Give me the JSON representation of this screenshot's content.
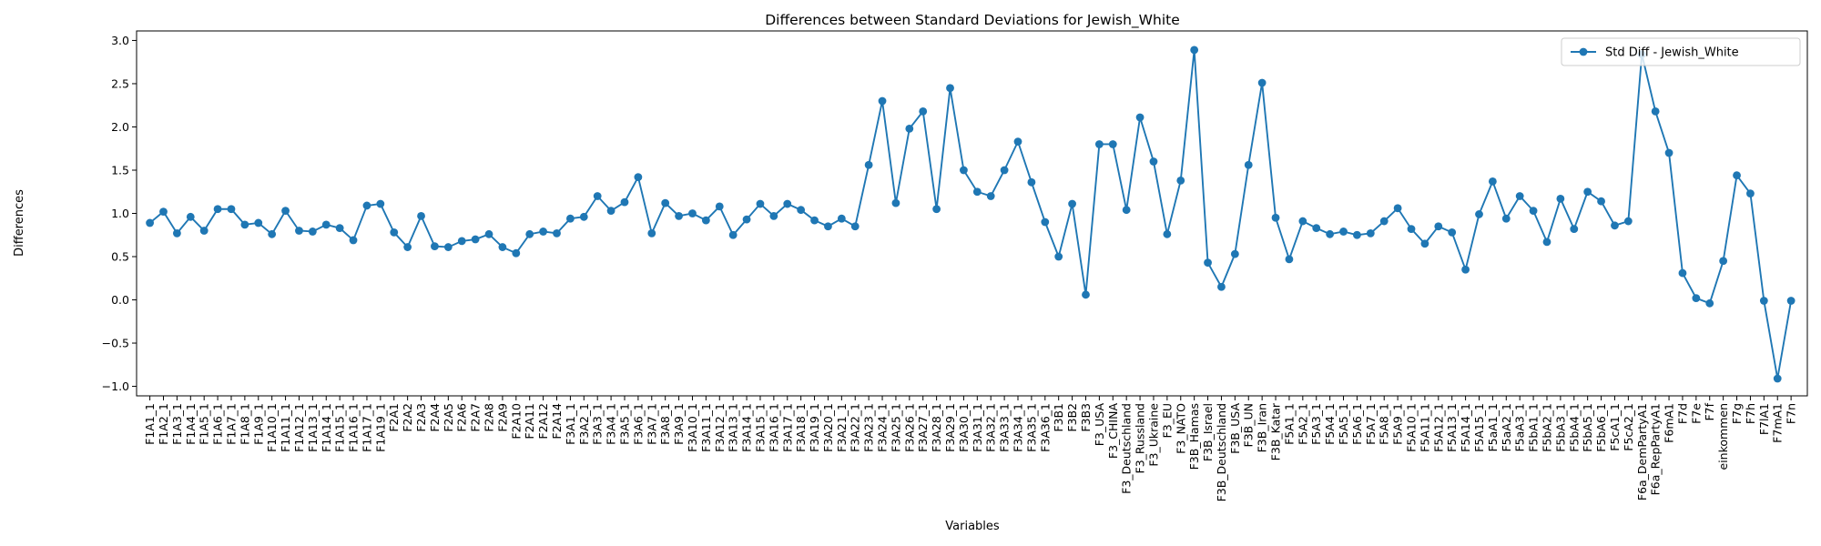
{
  "chart_data": {
    "type": "line",
    "title": "Differences between Standard Deviations for Jewish_White",
    "x_label": "Variables",
    "y_label": "Differences",
    "categories": [
      "F1A1_1",
      "F1A2_1",
      "F1A3_1",
      "F1A4_1",
      "F1A5_1",
      "F1A6_1",
      "F1A7_1",
      "F1A8_1",
      "F1A9_1",
      "F1A10_1",
      "F1A11_1",
      "F1A12_1",
      "F1A13_1",
      "F1A14_1",
      "F1A15_1",
      "F1A16_1",
      "F1A17_1",
      "F1A19_1",
      "F2A1",
      "F2A2",
      "F2A3",
      "F2A4",
      "F2A5",
      "F2A6",
      "F2A7",
      "F2A8",
      "F2A9",
      "F2A10",
      "F2A11",
      "F2A12",
      "F2A14",
      "F3A1_1",
      "F3A2_1",
      "F3A3_1",
      "F3A4_1",
      "F3A5_1",
      "F3A6_1",
      "F3A7_1",
      "F3A8_1",
      "F3A9_1",
      "F3A10_1",
      "F3A11_1",
      "F3A12_1",
      "F3A13_1",
      "F3A14_1",
      "F3A15_1",
      "F3A16_1",
      "F3A17_1",
      "F3A18_1",
      "F3A19_1",
      "F3A20_1",
      "F3A21_1",
      "F3A22_1",
      "F3A23_1",
      "F3A24_1",
      "F3A25_1",
      "F3A26_1",
      "F3A27_1",
      "F3A28_1",
      "F3A29_1",
      "F3A30_1",
      "F3A31_1",
      "F3A32_1",
      "F3A33_1",
      "F3A34_1",
      "F3A35_1",
      "F3A36_1",
      "F3B1",
      "F3B2",
      "F3B3",
      "F3_USA",
      "F3_CHINA",
      "F3_Deutschland",
      "F3_Russland",
      "F3_Ukraine",
      "F3_EU",
      "F3_NATO",
      "F3B_Hamas",
      "F3B_Israel",
      "F3B_Deutschland",
      "F3B_USA",
      "F3B_UN",
      "F3B_Iran",
      "F3B_Katar",
      "F5A1_1",
      "F5A2_1",
      "F5A3_1",
      "F5A4_1",
      "F5A5_1",
      "F5A6_1",
      "F5A7_1",
      "F5A8_1",
      "F5A9_1",
      "F5A10_1",
      "F5A11_1",
      "F5A12_1",
      "F5A13_1",
      "F5A14_1",
      "F5A15_1",
      "F5aA1_1",
      "F5aA2_1",
      "F5aA3_1",
      "F5bA1_1",
      "F5bA2_1",
      "F5bA3_1",
      "F5bA4_1",
      "F5bA5_1",
      "F5bA6_1",
      "F5cA1_1",
      "F5cA2_1",
      "F6a_DemPartyA1",
      "F6a_RepPartyA1",
      "F6mA1",
      "F7d",
      "F7e",
      "F7f",
      "einkommen",
      "F7g",
      "F7h",
      "F7lA1",
      "F7mA1",
      "F7n"
    ],
    "series": [
      {
        "name": "Std Diff - Jewish_White",
        "color": "#1f77b4",
        "values": [
          0.89,
          1.02,
          0.77,
          0.96,
          0.8,
          1.05,
          1.05,
          0.87,
          0.89,
          0.76,
          1.03,
          0.8,
          0.79,
          0.87,
          0.83,
          0.69,
          1.09,
          1.11,
          0.78,
          0.61,
          0.97,
          0.62,
          0.61,
          0.68,
          0.7,
          0.76,
          0.61,
          0.54,
          0.76,
          0.79,
          0.77,
          0.94,
          0.96,
          1.2,
          1.03,
          1.13,
          1.42,
          0.77,
          1.12,
          0.97,
          1.0,
          0.92,
          1.08,
          0.75,
          0.93,
          1.11,
          0.97,
          1.11,
          1.04,
          0.92,
          0.85,
          0.94,
          0.85,
          1.56,
          2.3,
          1.12,
          1.98,
          2.18,
          1.05,
          2.45,
          1.5,
          1.25,
          1.2,
          1.5,
          1.83,
          1.36,
          0.9,
          0.5,
          1.11,
          0.06,
          1.8,
          1.8,
          1.04,
          2.11,
          1.6,
          0.76,
          1.38,
          2.89,
          0.43,
          0.15,
          0.53,
          1.56,
          2.51,
          0.95,
          0.47,
          0.91,
          0.83,
          0.76,
          0.79,
          0.75,
          0.77,
          0.91,
          1.06,
          0.82,
          0.65,
          0.85,
          0.78,
          0.35,
          0.99,
          1.37,
          0.94,
          1.2,
          1.03,
          0.67,
          1.17,
          0.82,
          1.25,
          1.14,
          0.86,
          0.91,
          2.84,
          2.18,
          1.7,
          0.31,
          0.02,
          -0.04,
          0.45,
          1.44,
          1.23,
          -0.01,
          -0.91,
          -0.01
        ]
      }
    ],
    "ylim": [
      -1.11,
      3.11
    ],
    "yticks": [
      {
        "value": -1,
        "label": "−1.0"
      },
      {
        "value": -0.5,
        "label": "−0.5"
      },
      {
        "value": 0,
        "label": "0.0"
      },
      {
        "value": 0.5,
        "label": "0.5"
      },
      {
        "value": 1,
        "label": "1.0"
      },
      {
        "value": 1.5,
        "label": "1.5"
      },
      {
        "value": 2,
        "label": "2.0"
      },
      {
        "value": 2.5,
        "label": "2.5"
      },
      {
        "value": 3,
        "label": "3.0"
      }
    ],
    "legend": "upper right",
    "grid": false
  }
}
